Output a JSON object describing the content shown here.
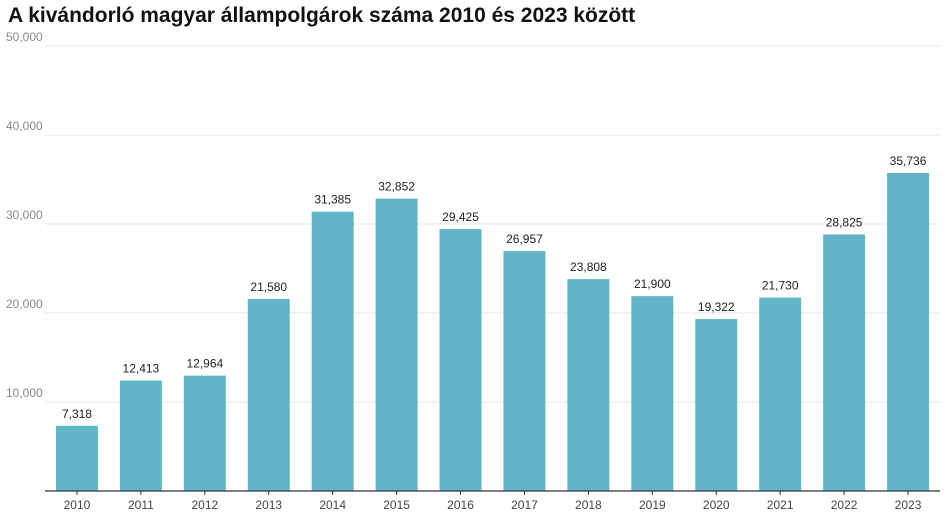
{
  "chart_data": {
    "type": "bar",
    "title": "A kivándorló magyar állampolgárok száma 2010 és 2023 között",
    "xlabel": "",
    "ylabel": "",
    "categories": [
      "2010",
      "2011",
      "2012",
      "2013",
      "2014",
      "2015",
      "2016",
      "2017",
      "2018",
      "2019",
      "2020",
      "2021",
      "2022",
      "2023"
    ],
    "values": [
      7318,
      12413,
      12964,
      21580,
      31385,
      32852,
      29425,
      26957,
      23808,
      21900,
      19322,
      21730,
      28825,
      35736
    ],
    "value_labels": [
      "7,318",
      "12,413",
      "12,964",
      "21,580",
      "31,385",
      "32,852",
      "29,425",
      "26,957",
      "23,808",
      "21,900",
      "19,322",
      "21,730",
      "28,825",
      "35,736"
    ],
    "ylim": [
      0,
      50000
    ],
    "yticks": [
      10000,
      20000,
      30000,
      40000,
      50000
    ],
    "ytick_labels": [
      "10,000",
      "20,000",
      "30,000",
      "40,000",
      "50,000"
    ],
    "grid": true,
    "legend": "none",
    "bar_color": "#63b6c7"
  }
}
